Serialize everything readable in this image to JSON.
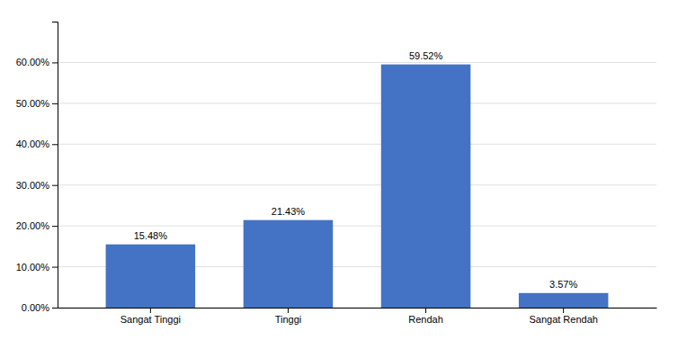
{
  "chart_data": {
    "type": "bar",
    "categories": [
      "Sangat Tinggi",
      "Tinggi",
      "Rendah",
      "Sangat Rendah"
    ],
    "values": [
      15.48,
      21.43,
      59.52,
      3.57
    ],
    "value_labels": [
      "15.48%",
      "21.43%",
      "59.52%",
      "3.57%"
    ],
    "color": "#4472C4",
    "ylim": [
      0,
      70
    ],
    "yticks": [
      {
        "value": 0,
        "label": "0.00%"
      },
      {
        "value": 10,
        "label": "10.00%"
      },
      {
        "value": 20,
        "label": "20.00%"
      },
      {
        "value": 30,
        "label": "30.00%"
      },
      {
        "value": 40,
        "label": "40.00%"
      },
      {
        "value": 50,
        "label": "50.00%"
      },
      {
        "value": 60,
        "label": "60.00%"
      }
    ],
    "grid": true,
    "data_labels": true
  }
}
